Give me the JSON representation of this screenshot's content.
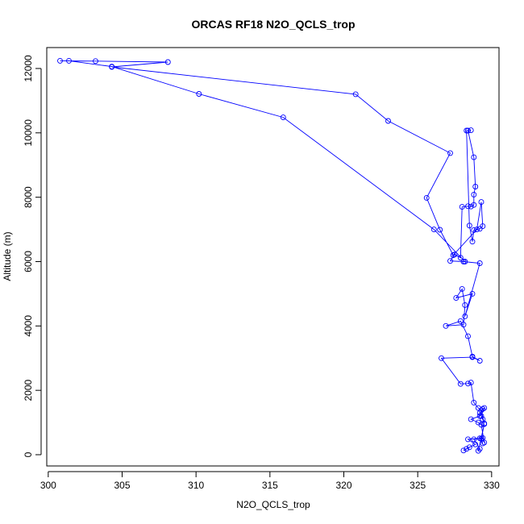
{
  "chart_data": {
    "type": "line",
    "title": "ORCAS RF18 N2O_QCLS_trop",
    "xlabel": "N2O_QCLS_trop",
    "ylabel": "Altitude (m)",
    "xlim": [
      299.9,
      330.5
    ],
    "ylim": [
      -350,
      12650
    ],
    "x_ticks": [
      300,
      305,
      310,
      315,
      320,
      325,
      330
    ],
    "x_tick_labels": [
      "300",
      "305",
      "310",
      "315",
      "320",
      "325",
      "330"
    ],
    "y_ticks": [
      0,
      2000,
      4000,
      6000,
      8000,
      10000,
      12000
    ],
    "y_tick_labels": [
      "0",
      "2000",
      "4000",
      "6000",
      "8000",
      "10000",
      "12000"
    ],
    "grid": false,
    "legend": "none",
    "series": [
      {
        "color": "#0000ff",
        "marker": "open-circle",
        "points": [
          [
            328.1,
            130
          ],
          [
            328.3,
            180
          ],
          [
            328.5,
            230
          ],
          [
            328.9,
            320
          ],
          [
            328.4,
            480
          ],
          [
            329.2,
            510
          ],
          [
            329.4,
            350
          ],
          [
            329.3,
            500
          ],
          [
            329.5,
            950
          ],
          [
            329.1,
            120
          ],
          [
            329.2,
            180
          ],
          [
            328.8,
            480
          ],
          [
            329.4,
            520
          ],
          [
            329.5,
            380
          ],
          [
            329.3,
            930
          ],
          [
            329.1,
            1000
          ],
          [
            328.6,
            1100
          ],
          [
            329.2,
            1200
          ],
          [
            329.5,
            1450
          ],
          [
            329.4,
            1420
          ],
          [
            329.2,
            1300
          ],
          [
            329.3,
            1200
          ],
          [
            329.4,
            1100
          ],
          [
            329.5,
            970
          ],
          [
            329.3,
            1380
          ],
          [
            329.1,
            1450
          ],
          [
            328.8,
            1620
          ],
          [
            328.6,
            2240
          ],
          [
            328.4,
            2210
          ],
          [
            327.9,
            2200
          ],
          [
            326.6,
            3000
          ],
          [
            328.7,
            3030
          ],
          [
            329.2,
            2920
          ],
          [
            328.7,
            3050
          ],
          [
            328.4,
            3680
          ],
          [
            327.9,
            4150
          ],
          [
            326.9,
            4000
          ],
          [
            328.1,
            4040
          ],
          [
            328.2,
            4650
          ],
          [
            328.0,
            5150
          ],
          [
            327.6,
            4870
          ],
          [
            328.7,
            5000
          ],
          [
            328.2,
            4300
          ],
          [
            329.2,
            5950
          ],
          [
            328.1,
            6000
          ],
          [
            327.2,
            6020
          ],
          [
            327.5,
            6220
          ],
          [
            327.9,
            6120
          ],
          [
            328.0,
            7700
          ],
          [
            328.4,
            7720
          ],
          [
            328.6,
            7710
          ],
          [
            328.8,
            7760
          ],
          [
            328.8,
            8080
          ],
          [
            328.9,
            8330
          ],
          [
            328.8,
            9240
          ],
          [
            328.4,
            10070
          ],
          [
            328.6,
            10080
          ],
          [
            328.3,
            10070
          ],
          [
            328.5,
            7120
          ],
          [
            328.7,
            6620
          ],
          [
            328.8,
            6980
          ],
          [
            329.2,
            7020
          ],
          [
            329.4,
            7100
          ],
          [
            329.3,
            7850
          ],
          [
            329.0,
            7000
          ],
          [
            327.4,
            6200
          ],
          [
            326.5,
            6990
          ],
          [
            325.6,
            7980
          ],
          [
            327.2,
            9370
          ],
          [
            323.0,
            10370
          ],
          [
            320.8,
            11200
          ],
          [
            304.3,
            12050
          ],
          [
            308.1,
            12200
          ],
          [
            303.2,
            12230
          ],
          [
            300.8,
            12240
          ],
          [
            301.4,
            12240
          ],
          [
            304.3,
            12060
          ],
          [
            310.2,
            11210
          ],
          [
            315.9,
            10480
          ],
          [
            326.1,
            7000
          ],
          [
            328.2,
            6000
          ]
        ]
      }
    ]
  }
}
